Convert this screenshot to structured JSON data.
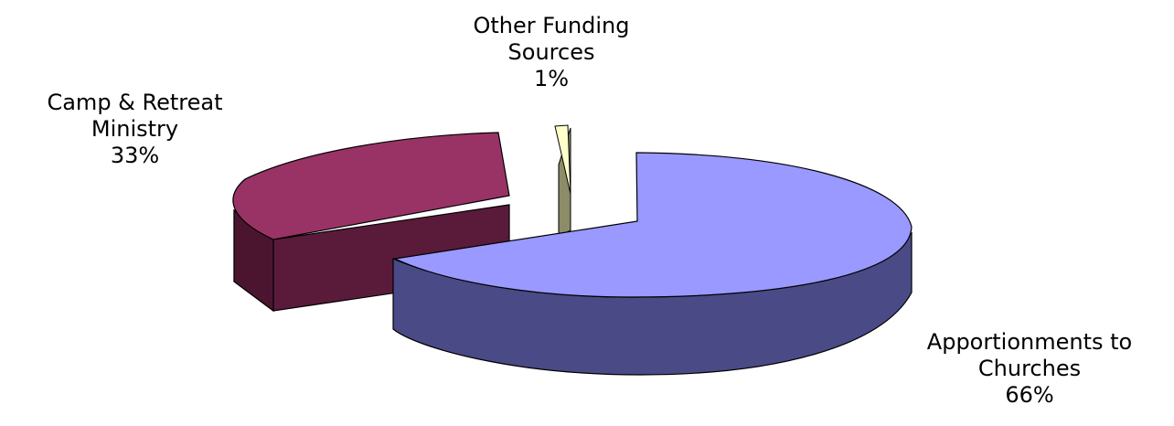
{
  "chart_data": {
    "type": "pie",
    "style": "3d-exploded",
    "legend": "none",
    "slices": [
      {
        "label_lines": [
          "Apportionments to",
          "Churches"
        ],
        "value": 66,
        "percent_label": "66%",
        "color": "#9999ff",
        "side_color": "#4a4a86"
      },
      {
        "label_lines": [
          "Camp & Retreat",
          "Ministry"
        ],
        "value": 33,
        "percent_label": "33%",
        "color": "#993366",
        "side_color": "#5a1b3a"
      },
      {
        "label_lines": [
          "Other Funding",
          "Sources"
        ],
        "value": 1,
        "percent_label": "1%",
        "color": "#ffffcc",
        "side_color": "#8c8c68"
      }
    ]
  }
}
